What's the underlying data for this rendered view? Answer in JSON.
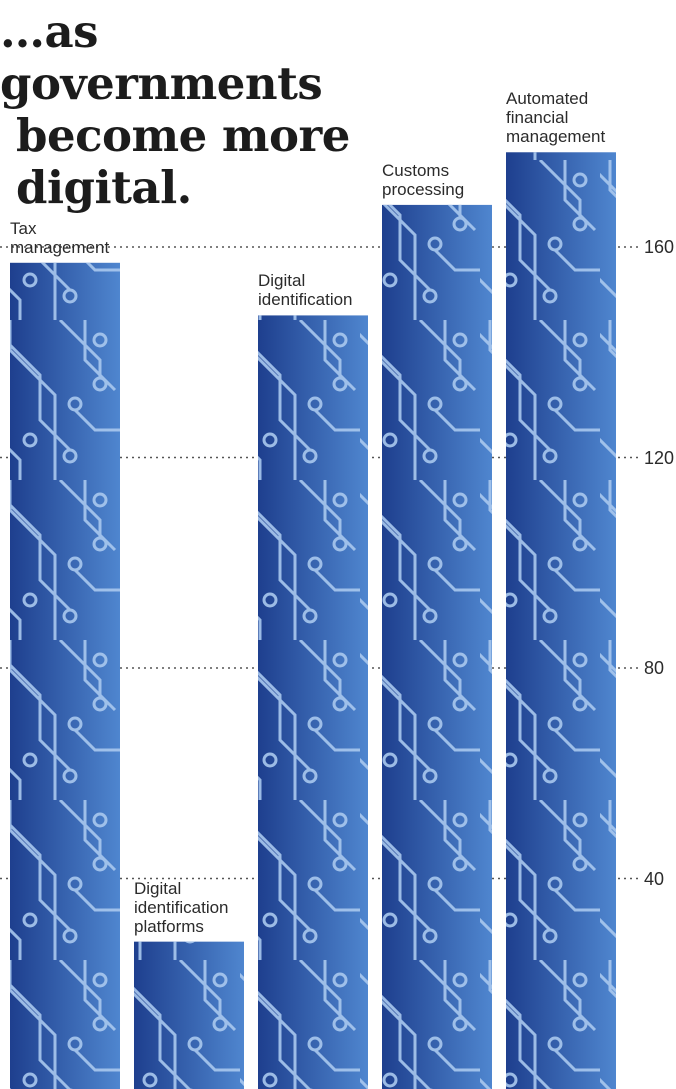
{
  "headline": {
    "line1": "…as governments",
    "line2": "become more",
    "line3": "digital."
  },
  "colors": {
    "bar_dark": "#1e3f8e",
    "bar_light": "#4f86cf",
    "circuit": "#a9c8ee",
    "grid_dots": "#555555",
    "text": "#2b2b2b"
  },
  "chart_data": {
    "type": "bar",
    "title": "…as governments become more digital.",
    "categories": [
      "Tax management",
      "Digital identification platforms",
      "Digital identification",
      "Customs processing",
      "Automated financial management"
    ],
    "values": [
      157,
      28,
      147,
      168,
      178
    ],
    "ylim": [
      0,
      180
    ],
    "yticks": [
      40,
      80,
      120,
      160
    ],
    "grid": true,
    "bar_fill": "circuit-board pattern"
  }
}
